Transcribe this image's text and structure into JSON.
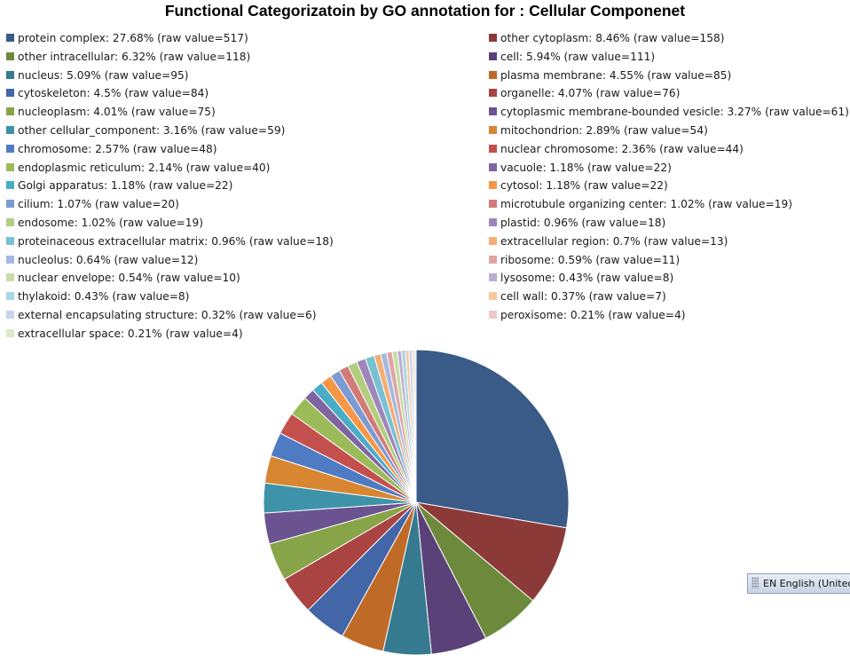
{
  "title": "Functional Categorizatoin by GO annotation  for : Cellular Componenet",
  "chart_data": {
    "type": "pie",
    "title": "Functional Categorizatoin by GO annotation  for : Cellular Componenet",
    "start_angle": "12 o'clock, clockwise",
    "slices": [
      {
        "label": "protein complex",
        "percent": "27.68%",
        "value": 517,
        "color": "#3a5a88"
      },
      {
        "label": "other cytoplasm",
        "percent": "8.46%",
        "value": 158,
        "color": "#8c3a38"
      },
      {
        "label": "other intracellular",
        "percent": "6.32%",
        "value": 118,
        "color": "#6d8a3c"
      },
      {
        "label": "cell",
        "percent": "5.94%",
        "value": 111,
        "color": "#5a4278"
      },
      {
        "label": "nucleus",
        "percent": "5.09%",
        "value": 95,
        "color": "#367a90"
      },
      {
        "label": "plasma membrane",
        "percent": "4.55%",
        "value": 85,
        "color": "#c06a28"
      },
      {
        "label": "cytoskeleton",
        "percent": "4.5%",
        "value": 84,
        "color": "#4266a8"
      },
      {
        "label": "organelle",
        "percent": "4.07%",
        "value": 76,
        "color": "#aa4442"
      },
      {
        "label": "nucleoplasm",
        "percent": "4.01%",
        "value": 75,
        "color": "#87a548"
      },
      {
        "label": "cytoplasmic membrane-bounded vesicle",
        "percent": "3.27%",
        "value": 61,
        "color": "#6b5290"
      },
      {
        "label": "other cellular_component",
        "percent": "3.16%",
        "value": 59,
        "color": "#3e93a8"
      },
      {
        "label": "mitochondrion",
        "percent": "2.89%",
        "value": 54,
        "color": "#d98633"
      },
      {
        "label": "chromosome",
        "percent": "2.57%",
        "value": 48,
        "color": "#4f7bc4"
      },
      {
        "label": "nuclear chromosome",
        "percent": "2.36%",
        "value": 44,
        "color": "#c4504d"
      },
      {
        "label": "endoplasmic reticulum",
        "percent": "2.14%",
        "value": 40,
        "color": "#9bbb59"
      },
      {
        "label": "vacuole",
        "percent": "1.18%",
        "value": 22,
        "color": "#8064a2"
      },
      {
        "label": "Golgi apparatus",
        "percent": "1.18%",
        "value": 22,
        "color": "#4bacc6"
      },
      {
        "label": "cytosol",
        "percent": "1.18%",
        "value": 22,
        "color": "#f79646"
      },
      {
        "label": "cilium",
        "percent": "1.07%",
        "value": 20,
        "color": "#7b9bd2"
      },
      {
        "label": "microtubule organizing center",
        "percent": "1.02%",
        "value": 19,
        "color": "#d27b79"
      },
      {
        "label": "endosome",
        "percent": "1.02%",
        "value": 19,
        "color": "#b3cd7e"
      },
      {
        "label": "plastid",
        "percent": "0.96%",
        "value": 18,
        "color": "#9d87ba"
      },
      {
        "label": "proteinaceous extracellular matrix",
        "percent": "0.96%",
        "value": 18,
        "color": "#78c0d4"
      },
      {
        "label": "extracellular region",
        "percent": "0.7%",
        "value": 13,
        "color": "#f5ad76"
      },
      {
        "label": "nucleolus",
        "percent": "0.64%",
        "value": 12,
        "color": "#a3b9e0"
      },
      {
        "label": "ribosome",
        "percent": "0.59%",
        "value": 11,
        "color": "#dfa4a3"
      },
      {
        "label": "nuclear envelope",
        "percent": "0.54%",
        "value": 10,
        "color": "#c8dca4"
      },
      {
        "label": "lysosome",
        "percent": "0.43%",
        "value": 8,
        "color": "#bcaed2"
      },
      {
        "label": "thylakoid",
        "percent": "0.43%",
        "value": 8,
        "color": "#a8d6e4"
      },
      {
        "label": "cell wall",
        "percent": "0.37%",
        "value": 7,
        "color": "#f8c8a4"
      },
      {
        "label": "external encapsulating structure",
        "percent": "0.32%",
        "value": 6,
        "color": "#c6d4ec"
      },
      {
        "label": "peroxisome",
        "percent": "0.21%",
        "value": 4,
        "color": "#ecc8c8"
      },
      {
        "label": "extracellular space",
        "percent": "0.21%",
        "value": 4,
        "color": "#dce8c8"
      }
    ]
  },
  "taskbar": {
    "language_indicator": "EN English (United States)"
  }
}
